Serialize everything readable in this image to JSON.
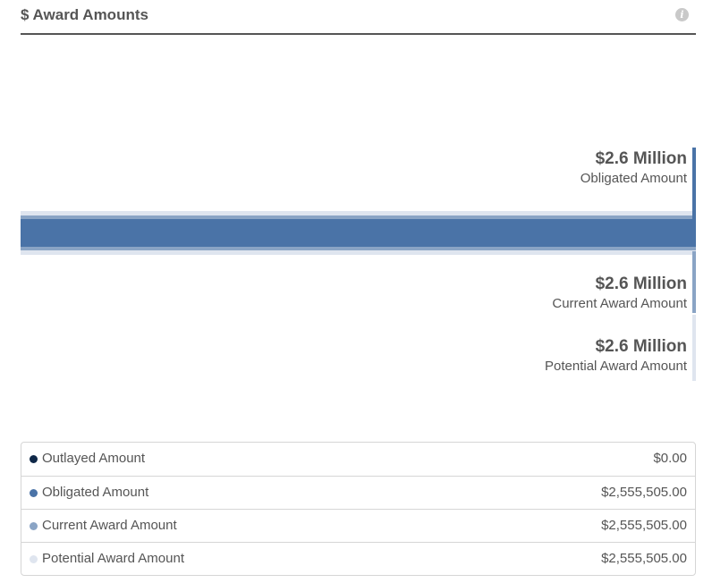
{
  "header": {
    "title": "$ Award Amounts",
    "info_icon": "info-icon"
  },
  "chart": {
    "labels": {
      "obligated": {
        "amount": "$2.6 Million",
        "name": "Obligated Amount"
      },
      "current": {
        "amount": "$2.6 Million",
        "name": "Current Award Amount"
      },
      "potential": {
        "amount": "$2.6 Million",
        "name": "Potential Award Amount"
      }
    },
    "colors": {
      "outlayed": "#0f2848",
      "obligated": "#4a73a7",
      "current": "#8aa4c5",
      "potential": "#dfe5ef"
    }
  },
  "legend": {
    "rows": [
      {
        "label": "Outlayed Amount",
        "value": "$0.00"
      },
      {
        "label": "Obligated Amount",
        "value": "$2,555,505.00"
      },
      {
        "label": "Current Award Amount",
        "value": "$2,555,505.00"
      },
      {
        "label": "Potential Award Amount",
        "value": "$2,555,505.00"
      }
    ]
  }
}
